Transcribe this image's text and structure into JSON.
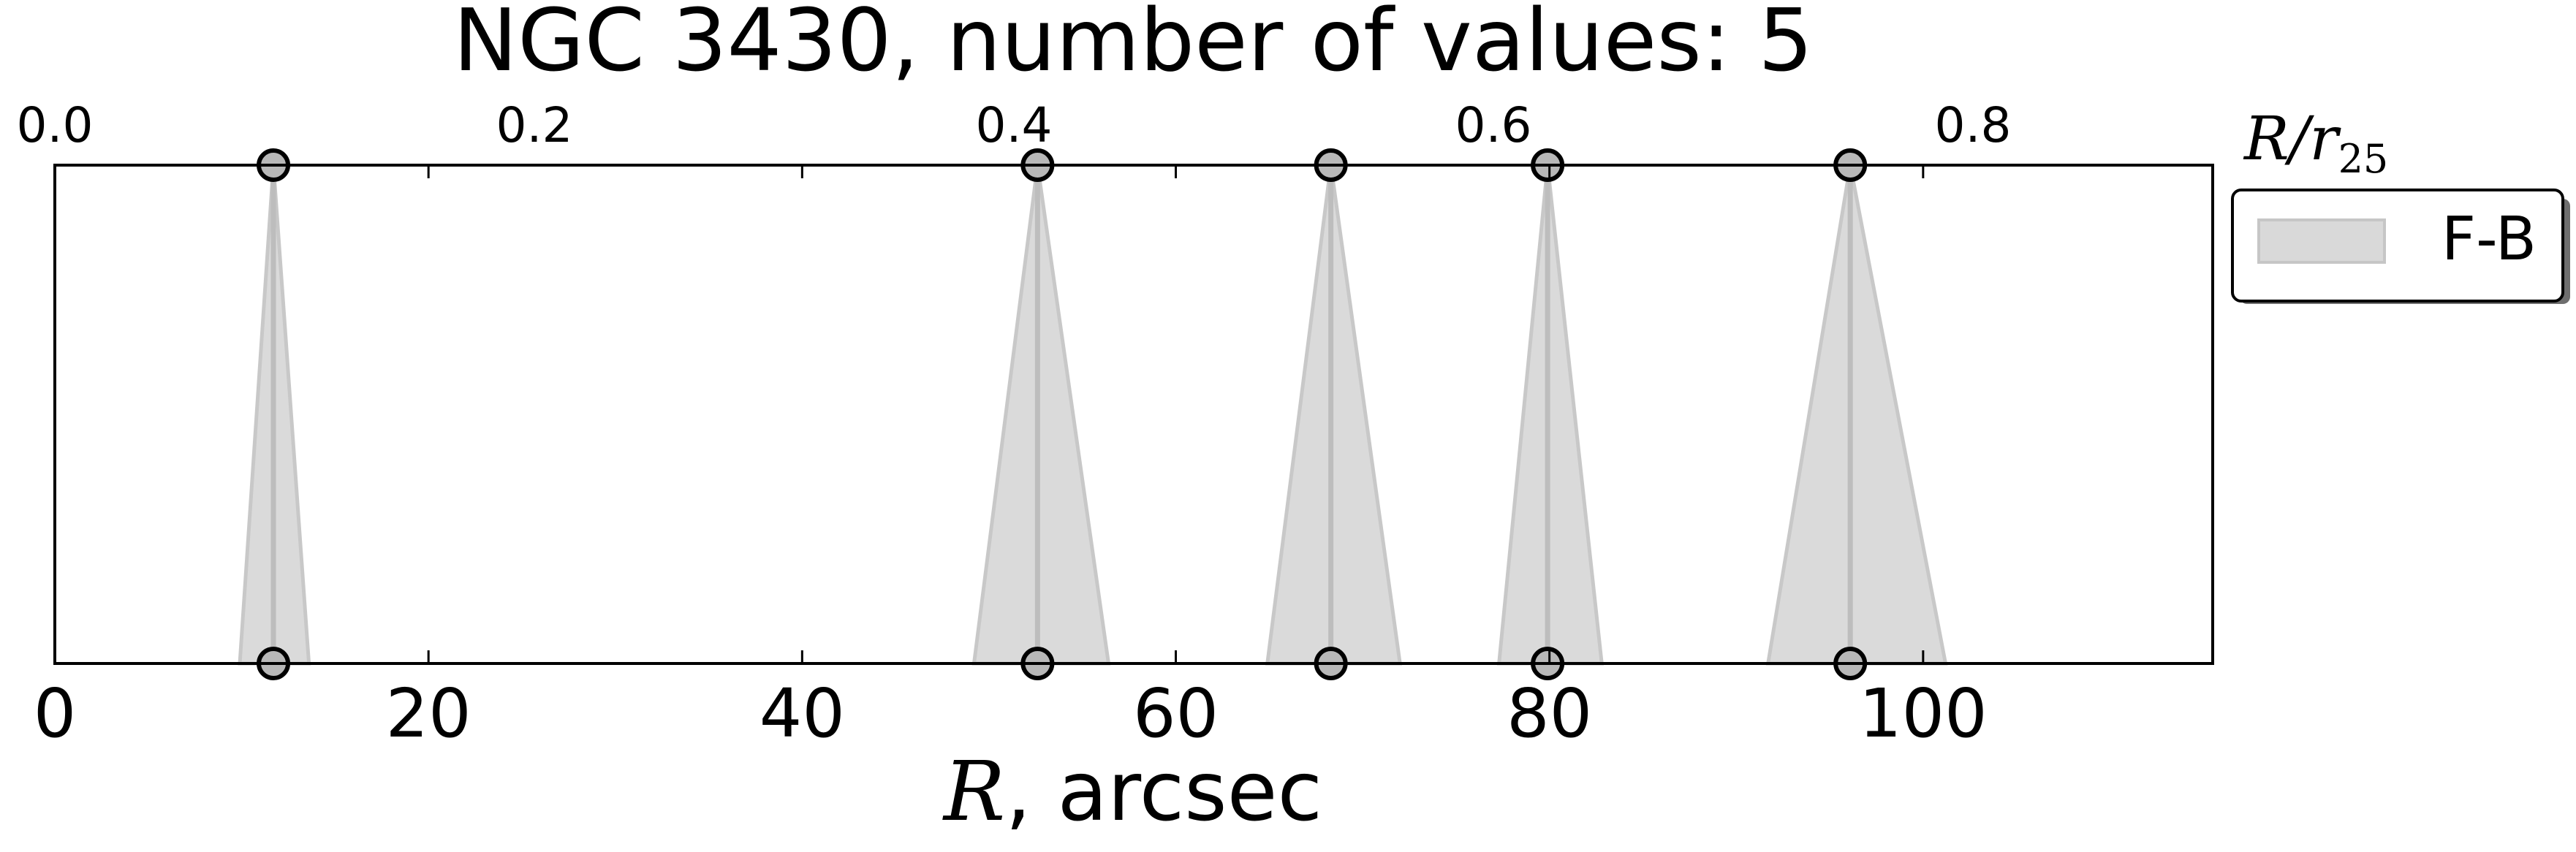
{
  "chart_data": {
    "type": "scatter",
    "title": "NGC 3430, number of values: 5",
    "xlabel": {
      "symbol": "R",
      "rest": ", arcsec"
    },
    "top_xlabel": {
      "symbol": "R/r",
      "sub": "25"
    },
    "xlim": [
      0,
      115.5
    ],
    "top_xlim": [
      0.0,
      0.9
    ],
    "xticks": [
      0,
      20,
      40,
      60,
      80,
      100
    ],
    "top_ticks": [
      0.0,
      0.2,
      0.4,
      0.6,
      0.8
    ],
    "top_ticks_text": [
      "0.0",
      "0.2",
      "0.4",
      "0.6",
      "0.8"
    ],
    "grid": false,
    "legend": {
      "position": "outside-top-right",
      "label": "F-B"
    },
    "series": [
      {
        "name": "F-B",
        "color": "#bdbdbd",
        "fill": "#d9d9d9",
        "points": [
          {
            "x": 11.7,
            "x_low": 9.9,
            "x_high": 13.6
          },
          {
            "x": 52.6,
            "x_low": 49.2,
            "x_high": 56.4
          },
          {
            "x": 68.3,
            "x_low": 64.9,
            "x_high": 72.0
          },
          {
            "x": 79.9,
            "x_low": 77.3,
            "x_high": 82.8
          },
          {
            "x": 96.1,
            "x_low": 91.7,
            "x_high": 101.2
          }
        ]
      }
    ]
  }
}
